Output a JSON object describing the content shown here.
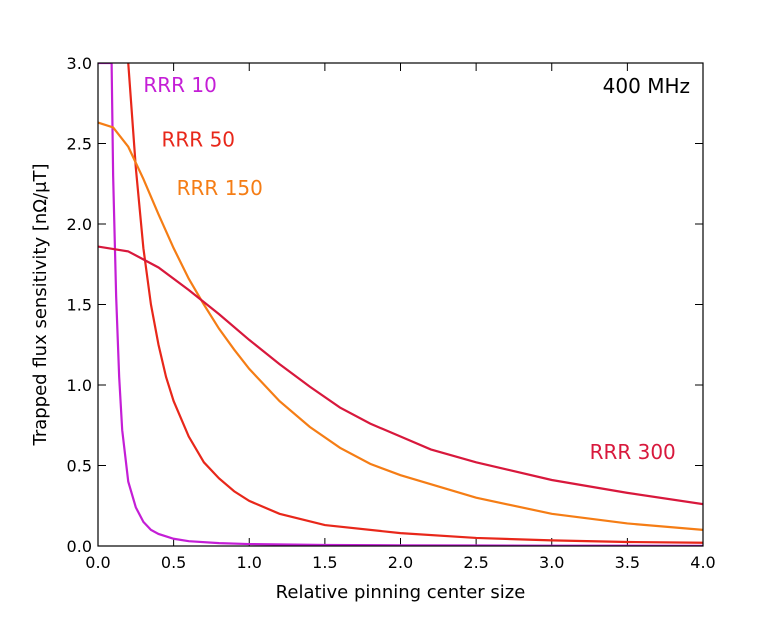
{
  "chart_data": {
    "type": "line",
    "title": "",
    "annotation": "400 MHz",
    "xlabel": "Relative pinning center size",
    "ylabel": "Trapped flux sensitivity [nΩ/μT]",
    "xlim": [
      0.0,
      4.0
    ],
    "ylim": [
      0.0,
      3.0
    ],
    "xticks": [
      "0.0",
      "0.5",
      "1.0",
      "1.5",
      "2.0",
      "2.5",
      "3.0",
      "3.5",
      "4.0"
    ],
    "yticks": [
      "0.0",
      "0.5",
      "1.0",
      "1.5",
      "2.0",
      "2.5",
      "3.0"
    ],
    "series": [
      {
        "name": "RRR 10",
        "color": "#c41ed6",
        "x": [
          0.0,
          0.03,
          0.05,
          0.07,
          0.09,
          0.1,
          0.12,
          0.14,
          0.16,
          0.2,
          0.25,
          0.3,
          0.35,
          0.4,
          0.5,
          0.6,
          0.8,
          1.0,
          1.5,
          2.0,
          2.5,
          3.0,
          3.5,
          4.0
        ],
        "y": [
          3.0,
          3.0,
          3.0,
          3.0,
          3.0,
          2.3,
          1.55,
          1.05,
          0.72,
          0.4,
          0.24,
          0.15,
          0.1,
          0.075,
          0.045,
          0.03,
          0.018,
          0.012,
          0.006,
          0.004,
          0.003,
          0.002,
          0.0015,
          0.001
        ]
      },
      {
        "name": "RRR 50",
        "color": "#e8271a",
        "x": [
          0.2,
          0.25,
          0.3,
          0.35,
          0.4,
          0.45,
          0.5,
          0.6,
          0.7,
          0.8,
          0.9,
          1.0,
          1.2,
          1.5,
          2.0,
          2.5,
          3.0,
          3.5,
          4.0
        ],
        "y": [
          3.0,
          2.35,
          1.85,
          1.5,
          1.25,
          1.05,
          0.9,
          0.68,
          0.52,
          0.42,
          0.34,
          0.28,
          0.2,
          0.13,
          0.08,
          0.05,
          0.035,
          0.025,
          0.02
        ]
      },
      {
        "name": "RRR 150",
        "color": "#f57d15",
        "x": [
          0.0,
          0.1,
          0.2,
          0.3,
          0.4,
          0.5,
          0.6,
          0.7,
          0.8,
          0.9,
          1.0,
          1.2,
          1.4,
          1.6,
          1.8,
          2.0,
          2.5,
          3.0,
          3.5,
          4.0
        ],
        "y": [
          2.63,
          2.6,
          2.48,
          2.28,
          2.06,
          1.85,
          1.66,
          1.5,
          1.35,
          1.22,
          1.1,
          0.9,
          0.74,
          0.61,
          0.51,
          0.44,
          0.3,
          0.2,
          0.14,
          0.1
        ]
      },
      {
        "name": "RRR 300",
        "color": "#d8183c",
        "x": [
          0.0,
          0.2,
          0.4,
          0.6,
          0.8,
          1.0,
          1.2,
          1.4,
          1.6,
          1.8,
          2.0,
          2.2,
          2.5,
          3.0,
          3.5,
          4.0
        ],
        "y": [
          1.86,
          1.83,
          1.73,
          1.59,
          1.44,
          1.28,
          1.13,
          0.99,
          0.86,
          0.76,
          0.68,
          0.6,
          0.52,
          0.41,
          0.33,
          0.26
        ]
      }
    ],
    "labels": [
      {
        "text": "RRR 10",
        "series": "RRR 10",
        "x": 0.3,
        "y": 2.82
      },
      {
        "text": "RRR 50",
        "series": "RRR 50",
        "x": 0.42,
        "y": 2.48
      },
      {
        "text": "RRR 150",
        "series": "RRR 150",
        "x": 0.52,
        "y": 2.18
      },
      {
        "text": "RRR 300",
        "series": "RRR 300",
        "x": 3.25,
        "y": 0.54
      }
    ]
  }
}
